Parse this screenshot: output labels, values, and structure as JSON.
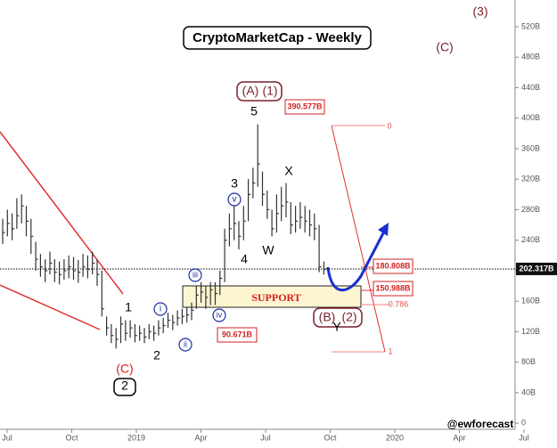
{
  "chart_data": {
    "type": "ohlc",
    "title": "CryptoMarketCap - Weekly",
    "ylim": [
      -8,
      555
    ],
    "yticks": [
      {
        "value": 0,
        "label": "0"
      },
      {
        "value": 40,
        "label": "40B"
      },
      {
        "value": 80,
        "label": "80B"
      },
      {
        "value": 120,
        "label": "120B"
      },
      {
        "value": 160,
        "label": "160B"
      },
      {
        "value": 200,
        "label": "200B"
      },
      {
        "value": 240,
        "label": "240B"
      },
      {
        "value": 280,
        "label": "280B"
      },
      {
        "value": 320,
        "label": "320B"
      },
      {
        "value": 360,
        "label": "360B"
      },
      {
        "value": 400,
        "label": "400B"
      },
      {
        "value": 440,
        "label": "440B"
      },
      {
        "value": 480,
        "label": "480B"
      },
      {
        "value": 520,
        "label": "520B"
      }
    ],
    "xticks": [
      "Jul",
      "Oct",
      "2019",
      "Apr",
      "Jul",
      "Oct",
      "2020",
      "Apr",
      "Jul"
    ],
    "color": "#333333",
    "high": [
      268,
      280,
      275,
      295,
      300,
      285,
      268,
      238,
      222,
      215,
      225,
      215,
      212,
      215,
      220,
      218,
      214,
      222,
      220,
      225,
      215,
      200,
      140,
      130,
      125,
      140,
      135,
      135,
      130,
      128,
      125,
      130,
      128,
      135,
      138,
      145,
      142,
      148,
      150,
      152,
      158,
      180,
      185,
      180,
      185,
      185,
      200,
      255,
      275,
      285,
      265,
      285,
      320,
      335,
      392,
      330,
      305,
      280,
      300,
      310,
      315,
      290,
      285,
      290,
      285,
      280,
      275,
      260,
      212
    ],
    "low": [
      235,
      245,
      240,
      255,
      262,
      245,
      222,
      200,
      192,
      185,
      195,
      185,
      182,
      188,
      190,
      188,
      184,
      192,
      190,
      195,
      180,
      140,
      115,
      105,
      98,
      105,
      108,
      112,
      106,
      108,
      105,
      110,
      108,
      115,
      118,
      125,
      122,
      128,
      130,
      132,
      135,
      150,
      158,
      150,
      155,
      155,
      168,
      185,
      232,
      240,
      228,
      240,
      265,
      295,
      310,
      285,
      268,
      245,
      250,
      265,
      270,
      248,
      250,
      255,
      250,
      245,
      240,
      198,
      195
    ],
    "close": [
      250,
      262,
      255,
      272,
      285,
      265,
      245,
      215,
      205,
      200,
      210,
      198,
      195,
      200,
      205,
      200,
      198,
      205,
      202,
      210,
      195,
      150,
      125,
      115,
      110,
      130,
      118,
      125,
      115,
      118,
      113,
      120,
      118,
      125,
      128,
      135,
      132,
      138,
      140,
      142,
      148,
      168,
      172,
      165,
      175,
      170,
      190,
      240,
      255,
      262,
      245,
      265,
      300,
      315,
      340,
      300,
      280,
      255,
      275,
      285,
      290,
      260,
      265,
      270,
      265,
      260,
      255,
      205,
      202
    ],
    "last_price": {
      "value": 202.317,
      "label": "202.317B"
    },
    "annotations": [
      "(3)",
      "(C)",
      "(A)",
      "(1)",
      "5",
      "390.577B",
      "0",
      "3",
      "v",
      "X",
      "4",
      "W",
      "iii",
      "i",
      "1",
      "ii",
      "iv",
      "2",
      "SUPPORT",
      "(B)",
      "(2)",
      "Y",
      "180.808B",
      "150.988B",
      "0.786",
      "90.671B",
      "(C)",
      "2",
      "1",
      "@ewforecast"
    ]
  }
}
